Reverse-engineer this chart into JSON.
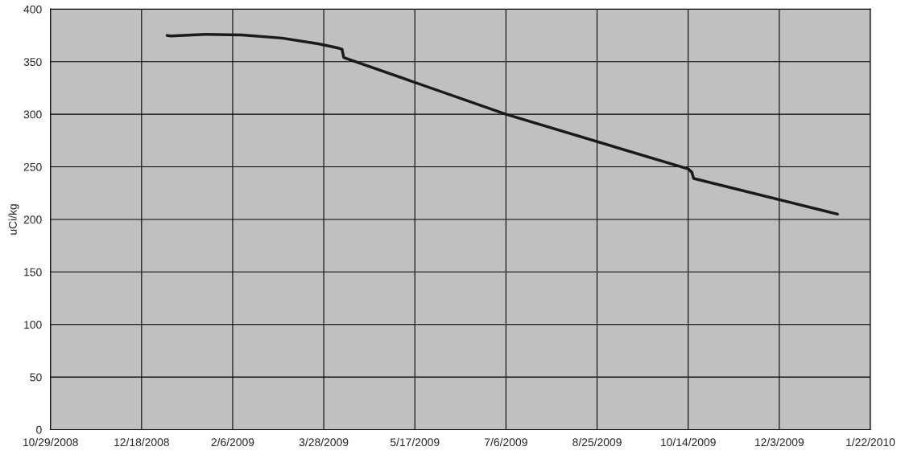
{
  "chart_data": {
    "type": "line",
    "ylabel": "uCi/kg",
    "x": [
      "2009-01-01",
      "2009-01-03",
      "2009-01-22",
      "2009-02-11",
      "2009-03-05",
      "2009-03-25",
      "2009-04-05",
      "2009-04-07",
      "2009-04-08",
      "2009-07-06",
      "2009-10-14",
      "2009-10-16",
      "2009-10-17",
      "2010-01-04"
    ],
    "series": [
      {
        "color": "#1a1a1a",
        "values": [
          375,
          374.5,
          376,
          375.5,
          372.5,
          367,
          363,
          362,
          354,
          300,
          248,
          245,
          239,
          205
        ]
      }
    ],
    "xlim": [
      "2008-10-29",
      "2010-01-22"
    ],
    "xticks": [
      {
        "value": "2008-10-29",
        "label": "10/29/2008"
      },
      {
        "value": "2008-12-18",
        "label": "12/18/2008"
      },
      {
        "value": "2009-02-06",
        "label": "2/6/2009"
      },
      {
        "value": "2009-03-28",
        "label": "3/28/2009"
      },
      {
        "value": "2009-05-17",
        "label": "5/17/2009"
      },
      {
        "value": "2009-07-06",
        "label": "7/6/2009"
      },
      {
        "value": "2009-08-25",
        "label": "8/25/2009"
      },
      {
        "value": "2009-10-14",
        "label": "10/14/2009"
      },
      {
        "value": "2009-12-03",
        "label": "12/3/2009"
      },
      {
        "value": "2010-01-22",
        "label": "1/22/2010"
      }
    ],
    "ylim": [
      0,
      400
    ],
    "yticks": [
      0,
      50,
      100,
      150,
      200,
      250,
      300,
      350,
      400
    ],
    "grid": true,
    "marker": "none",
    "line_style": "solid",
    "legend": false
  }
}
